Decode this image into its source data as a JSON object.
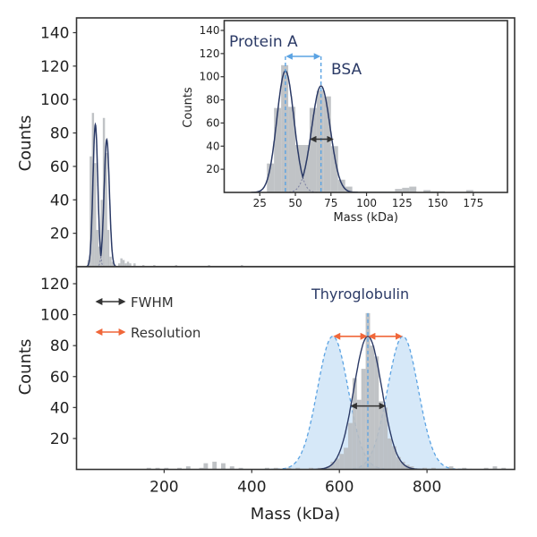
{
  "colors": {
    "bars": "#b9bdc0",
    "fit": "#2b3a66",
    "blue": "#5ba3e3",
    "orange": "#f0673a",
    "fwhm": "#333333",
    "frame": "#333333"
  },
  "chart_data": [
    {
      "id": "top",
      "type": "bar",
      "xlabel": "",
      "ylabel": "Counts",
      "xlim": [
        0,
        1000
      ],
      "ylim": [
        0,
        140
      ],
      "xticks": [
        200,
        400,
        600,
        800
      ],
      "xtick_labels": [
        "",
        "",
        "",
        ""
      ],
      "yticks": [
        20,
        40,
        60,
        80,
        100,
        120,
        140
      ],
      "ytick_labels": [
        "20",
        "40",
        "60",
        "80",
        "100",
        "120",
        "140"
      ],
      "bin_width": 5,
      "bins": [
        [
          25,
          4
        ],
        [
          30,
          66
        ],
        [
          35,
          92
        ],
        [
          40,
          62
        ],
        [
          45,
          22
        ],
        [
          50,
          12
        ],
        [
          55,
          40
        ],
        [
          60,
          89
        ],
        [
          65,
          68
        ],
        [
          70,
          22
        ],
        [
          75,
          6
        ],
        [
          80,
          3
        ],
        [
          95,
          2
        ],
        [
          100,
          5
        ],
        [
          105,
          4
        ],
        [
          110,
          2
        ],
        [
          115,
          3
        ],
        [
          120,
          2
        ],
        [
          130,
          2
        ],
        [
          150,
          1
        ],
        [
          175,
          1
        ],
        [
          225,
          1
        ],
        [
          300,
          1
        ],
        [
          375,
          1
        ]
      ],
      "fits": [
        {
          "mu": 43,
          "amp": 85,
          "sigma": 5.5
        },
        {
          "mu": 69,
          "amp": 76,
          "sigma": 6
        }
      ]
    },
    {
      "id": "inset",
      "type": "bar",
      "xlabel": "Mass (kDa)",
      "ylabel": "Counts",
      "xlim": [
        0,
        199
      ],
      "ylim": [
        0,
        148
      ],
      "xticks": [
        25,
        50,
        75,
        100,
        125,
        150,
        175
      ],
      "xtick_labels": [
        "25",
        "50",
        "75",
        "100",
        "125",
        "150",
        "175"
      ],
      "yticks": [
        20,
        40,
        60,
        80,
        100,
        120,
        140
      ],
      "ytick_labels": [
        "20",
        "40",
        "60",
        "80",
        "100",
        "120",
        "140"
      ],
      "bin_width": 5,
      "bins": [
        [
          30,
          25
        ],
        [
          35,
          73
        ],
        [
          40,
          110
        ],
        [
          45,
          74
        ],
        [
          50,
          41
        ],
        [
          55,
          41
        ],
        [
          60,
          73
        ],
        [
          65,
          88
        ],
        [
          70,
          83
        ],
        [
          75,
          40
        ],
        [
          80,
          11
        ],
        [
          85,
          5
        ],
        [
          90,
          1
        ],
        [
          95,
          1
        ],
        [
          100,
          1
        ],
        [
          105,
          1
        ],
        [
          110,
          1
        ],
        [
          115,
          1
        ],
        [
          120,
          3
        ],
        [
          125,
          4
        ],
        [
          130,
          5
        ],
        [
          140,
          2
        ],
        [
          145,
          1
        ],
        [
          150,
          1
        ],
        [
          170,
          2
        ]
      ],
      "fits": [
        {
          "mu": 43,
          "amp": 105,
          "sigma": 6
        },
        {
          "mu": 68,
          "amp": 92,
          "sigma": 6.5
        }
      ],
      "annotations": {
        "protein_a": "Protein A",
        "bsa": "BSA",
        "separation": [
          43,
          68
        ],
        "fwhm": [
          61,
          76
        ]
      }
    },
    {
      "id": "bottom",
      "type": "bar",
      "xlabel": "Mass (kDa)",
      "ylabel": "Counts",
      "xlim": [
        0,
        1000
      ],
      "ylim": [
        0,
        130
      ],
      "xticks": [
        200,
        400,
        600,
        800
      ],
      "xtick_labels": [
        "200",
        "400",
        "600",
        "800"
      ],
      "yticks": [
        20,
        40,
        60,
        80,
        100,
        120
      ],
      "ytick_labels": [
        "20",
        "40",
        "60",
        "80",
        "100",
        "120"
      ],
      "bin_width": 10,
      "bins": [
        [
          160,
          1
        ],
        [
          180,
          1
        ],
        [
          200,
          1
        ],
        [
          230,
          1
        ],
        [
          250,
          2
        ],
        [
          280,
          1
        ],
        [
          290,
          4
        ],
        [
          310,
          5
        ],
        [
          330,
          4
        ],
        [
          350,
          2
        ],
        [
          370,
          1
        ],
        [
          430,
          1
        ],
        [
          450,
          1
        ],
        [
          480,
          1
        ],
        [
          500,
          1
        ],
        [
          530,
          1
        ],
        [
          550,
          1
        ],
        [
          560,
          1
        ],
        [
          570,
          2
        ],
        [
          580,
          5
        ],
        [
          590,
          7
        ],
        [
          600,
          10
        ],
        [
          610,
          14
        ],
        [
          620,
          30
        ],
        [
          630,
          59
        ],
        [
          640,
          45
        ],
        [
          650,
          65
        ],
        [
          660,
          101
        ],
        [
          670,
          80
        ],
        [
          680,
          73
        ],
        [
          690,
          44
        ],
        [
          700,
          40
        ],
        [
          710,
          20
        ],
        [
          720,
          15
        ],
        [
          730,
          8
        ],
        [
          740,
          5
        ],
        [
          750,
          3
        ],
        [
          760,
          2
        ],
        [
          790,
          1
        ],
        [
          810,
          1
        ],
        [
          850,
          2
        ],
        [
          880,
          1
        ],
        [
          930,
          1
        ],
        [
          950,
          2
        ],
        [
          970,
          1
        ]
      ],
      "fits": [
        {
          "mu": 665,
          "amp": 86,
          "sigma": 32
        }
      ],
      "resolution_curves": [
        {
          "mu": 585,
          "amp": 86,
          "sigma": 35
        },
        {
          "mu": 745,
          "amp": 86,
          "sigma": 35
        }
      ],
      "annotations": {
        "title": "Thyroglobulin",
        "fwhm": [
          628,
          703
        ],
        "resolution": [
          [
            585,
            665
          ],
          [
            665,
            745
          ]
        ]
      }
    }
  ],
  "legend": {
    "placement": "top-left",
    "items": [
      {
        "label": "FWHM",
        "color": "#333333"
      },
      {
        "label": "Resolution",
        "color": "#f0673a"
      }
    ]
  }
}
